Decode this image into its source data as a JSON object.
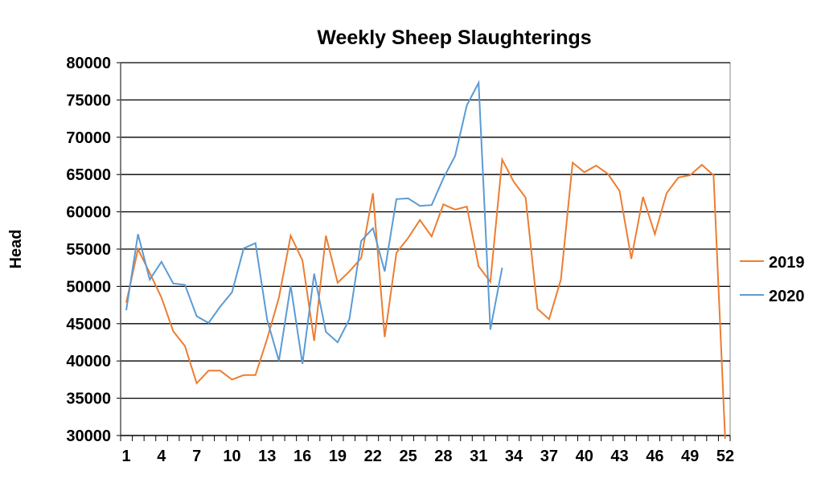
{
  "chart_data": {
    "type": "line",
    "title": "Weekly Sheep Slaughterings",
    "xlabel": "",
    "ylabel": "Head",
    "ylim": [
      30000,
      80000
    ],
    "yticks": [
      30000,
      35000,
      40000,
      45000,
      50000,
      55000,
      60000,
      65000,
      70000,
      75000,
      80000
    ],
    "xticks": [
      1,
      4,
      7,
      10,
      13,
      16,
      19,
      22,
      25,
      28,
      31,
      34,
      37,
      40,
      43,
      46,
      49,
      52
    ],
    "xlim": [
      1,
      52
    ],
    "grid": "horizontal",
    "legend": "right",
    "series": [
      {
        "name": "2019",
        "color": "#ED7D31",
        "values": [
          47800,
          55000,
          51800,
          48500,
          44000,
          42000,
          37000,
          38700,
          38700,
          37500,
          38100,
          38100,
          43000,
          48500,
          56800,
          53500,
          42700,
          56800,
          50500,
          52000,
          53800,
          62500,
          43200,
          54500,
          56500,
          58900,
          56700,
          61000,
          60300,
          60700,
          52700,
          50600,
          67000,
          64000,
          61900,
          47000,
          45600,
          50900,
          66600,
          65300,
          66200,
          65100,
          62800,
          53700,
          62000,
          57000,
          62500,
          64600,
          64900,
          66300,
          64900,
          29000
        ]
      },
      {
        "name": "2020",
        "color": "#5B9BD5",
        "values": [
          46800,
          57000,
          50900,
          53300,
          50400,
          50200,
          46000,
          45100,
          47300,
          49200,
          55100,
          55800,
          45500,
          40000,
          50100,
          39600,
          51700,
          43900,
          42500,
          45600,
          56100,
          57800,
          52000,
          61700,
          61800,
          60800,
          60900,
          64500,
          67500,
          74300,
          77300,
          44200,
          52500
        ]
      }
    ]
  }
}
